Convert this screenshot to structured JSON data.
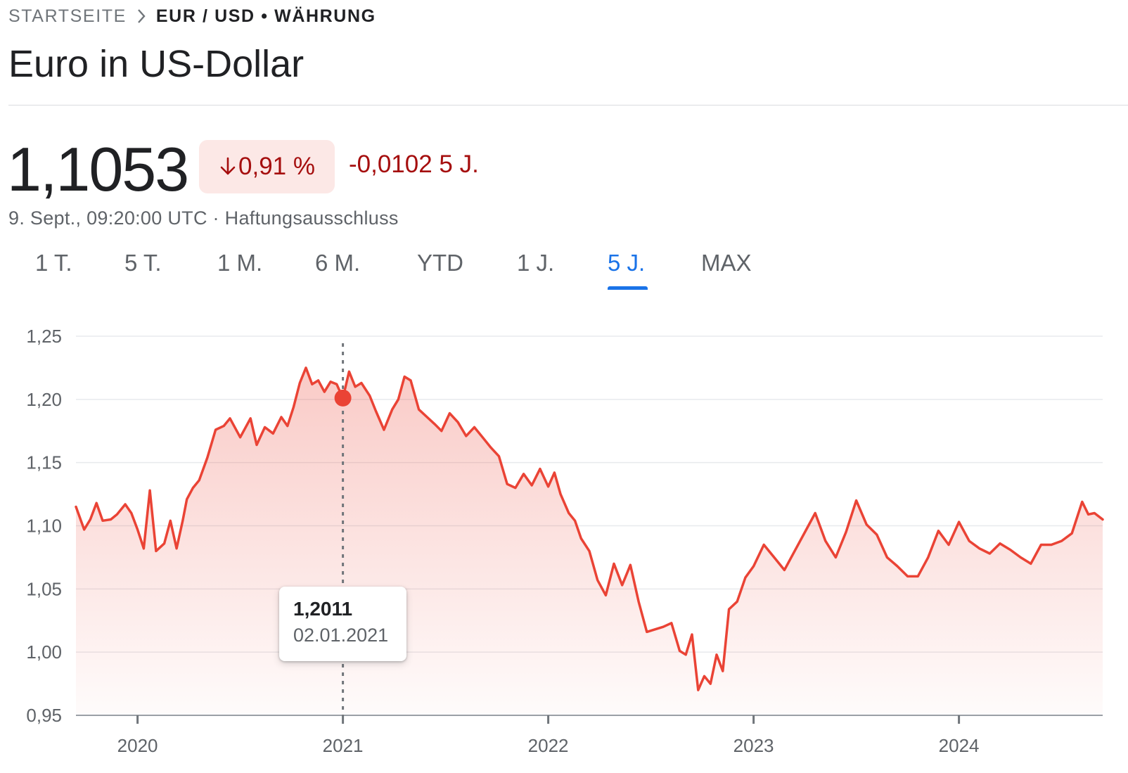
{
  "breadcrumb": {
    "home": "STARTSEITE",
    "current": "EUR / USD • WÄHRUNG"
  },
  "title": "Euro in US-Dollar",
  "quote": {
    "price": "1,1053",
    "change_percent": "0,91 %",
    "change_abs": "-0,0102 5 J.",
    "timestamp": "9. Sept., 09:20:00 UTC · Haftungsausschluss"
  },
  "tabs": [
    {
      "label": "1 T."
    },
    {
      "label": "5 T."
    },
    {
      "label": "1 M."
    },
    {
      "label": "6 M."
    },
    {
      "label": "YTD"
    },
    {
      "label": "1 J."
    },
    {
      "label": "5 J.",
      "active": true
    },
    {
      "label": "MAX"
    }
  ],
  "colors": {
    "line": "#ea4335",
    "negative": "#a50e0e",
    "active_tab": "#1a73e8"
  },
  "tooltip": {
    "value": "1,2011",
    "date": "02.01.2021"
  },
  "chart_data": {
    "type": "area",
    "ylim": [
      0.95,
      1.25
    ],
    "xlim": [
      2019.7,
      2024.7
    ],
    "y_ticks": [
      {
        "value": 1.25,
        "label": "1,25"
      },
      {
        "value": 1.2,
        "label": "1,20"
      },
      {
        "value": 1.15,
        "label": "1,15"
      },
      {
        "value": 1.1,
        "label": "1,10"
      },
      {
        "value": 1.05,
        "label": "1,05"
      },
      {
        "value": 1.0,
        "label": "1,00"
      },
      {
        "value": 0.95,
        "label": "0,95"
      }
    ],
    "x_ticks": [
      {
        "value": 2020,
        "label": "2020"
      },
      {
        "value": 2021,
        "label": "2021"
      },
      {
        "value": 2022,
        "label": "2022"
      },
      {
        "value": 2023,
        "label": "2023"
      },
      {
        "value": 2024,
        "label": "2024"
      }
    ],
    "grid": true,
    "highlight": {
      "x": 2021.0,
      "y": 1.2011
    },
    "x": [
      2019.7,
      2019.74,
      2019.77,
      2019.8,
      2019.83,
      2019.87,
      2019.9,
      2019.94,
      2019.97,
      2020.0,
      2020.03,
      2020.06,
      2020.09,
      2020.13,
      2020.16,
      2020.19,
      2020.22,
      2020.24,
      2020.27,
      2020.3,
      2020.34,
      2020.38,
      2020.42,
      2020.45,
      2020.5,
      2020.55,
      2020.58,
      2020.62,
      2020.66,
      2020.7,
      2020.73,
      2020.76,
      2020.79,
      2020.82,
      2020.85,
      2020.88,
      2020.91,
      2020.94,
      2020.97,
      2021.0,
      2021.03,
      2021.06,
      2021.09,
      2021.13,
      2021.16,
      2021.2,
      2021.24,
      2021.27,
      2021.3,
      2021.33,
      2021.37,
      2021.41,
      2021.45,
      2021.48,
      2021.52,
      2021.56,
      2021.6,
      2021.64,
      2021.68,
      2021.72,
      2021.76,
      2021.8,
      2021.84,
      2021.88,
      2021.92,
      2021.96,
      2022.0,
      2022.03,
      2022.06,
      2022.1,
      2022.13,
      2022.16,
      2022.2,
      2022.24,
      2022.28,
      2022.32,
      2022.36,
      2022.4,
      2022.44,
      2022.48,
      2022.52,
      2022.56,
      2022.6,
      2022.64,
      2022.67,
      2022.7,
      2022.73,
      2022.76,
      2022.79,
      2022.82,
      2022.85,
      2022.88,
      2022.92,
      2022.96,
      2023.0,
      2023.05,
      2023.1,
      2023.15,
      2023.2,
      2023.25,
      2023.3,
      2023.35,
      2023.4,
      2023.45,
      2023.5,
      2023.55,
      2023.6,
      2023.65,
      2023.7,
      2023.75,
      2023.8,
      2023.85,
      2023.9,
      2023.95,
      2024.0,
      2024.05,
      2024.1,
      2024.15,
      2024.2,
      2024.25,
      2024.3,
      2024.35,
      2024.4,
      2024.45,
      2024.5,
      2024.55,
      2024.6,
      2024.63,
      2024.66,
      2024.7
    ],
    "y": [
      1.115,
      1.097,
      1.105,
      1.118,
      1.104,
      1.105,
      1.109,
      1.117,
      1.11,
      1.097,
      1.082,
      1.128,
      1.08,
      1.086,
      1.104,
      1.082,
      1.104,
      1.121,
      1.13,
      1.136,
      1.154,
      1.176,
      1.179,
      1.185,
      1.17,
      1.185,
      1.164,
      1.178,
      1.173,
      1.186,
      1.179,
      1.194,
      1.213,
      1.225,
      1.212,
      1.215,
      1.206,
      1.214,
      1.212,
      1.201,
      1.222,
      1.21,
      1.213,
      1.203,
      1.191,
      1.176,
      1.192,
      1.2,
      1.218,
      1.215,
      1.192,
      1.186,
      1.18,
      1.175,
      1.189,
      1.182,
      1.171,
      1.178,
      1.17,
      1.162,
      1.155,
      1.133,
      1.13,
      1.141,
      1.132,
      1.145,
      1.131,
      1.142,
      1.125,
      1.11,
      1.104,
      1.09,
      1.08,
      1.057,
      1.045,
      1.07,
      1.053,
      1.069,
      1.04,
      1.016,
      1.018,
      1.02,
      1.023,
      1.001,
      0.998,
      1.014,
      0.97,
      0.981,
      0.975,
      0.998,
      0.985,
      1.034,
      1.04,
      1.059,
      1.068,
      1.085,
      1.075,
      1.065,
      1.08,
      1.095,
      1.11,
      1.088,
      1.075,
      1.095,
      1.12,
      1.101,
      1.093,
      1.075,
      1.068,
      1.06,
      1.06,
      1.075,
      1.096,
      1.085,
      1.103,
      1.088,
      1.082,
      1.078,
      1.086,
      1.081,
      1.075,
      1.07,
      1.085,
      1.085,
      1.088,
      1.094,
      1.119,
      1.109,
      1.11,
      1.105
    ]
  }
}
